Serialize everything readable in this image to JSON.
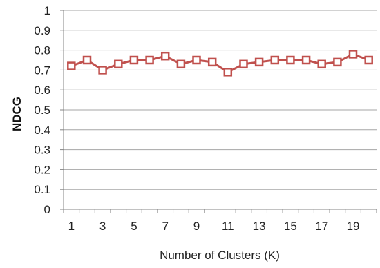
{
  "chart_data": {
    "type": "line",
    "title": "",
    "xlabel": "Number of Clusters (K)",
    "ylabel": "NDCG",
    "x": [
      1,
      2,
      3,
      4,
      5,
      6,
      7,
      8,
      9,
      10,
      11,
      12,
      13,
      14,
      15,
      16,
      17,
      18,
      19,
      20
    ],
    "series": [
      {
        "values": [
          0.72,
          0.75,
          0.7,
          0.73,
          0.75,
          0.75,
          0.77,
          0.73,
          0.75,
          0.74,
          0.69,
          0.73,
          0.74,
          0.75,
          0.75,
          0.75,
          0.73,
          0.74,
          0.78,
          0.75
        ],
        "color": "#c0504d",
        "marker": "square-hollow"
      }
    ],
    "xticks": [
      1,
      3,
      5,
      7,
      9,
      11,
      13,
      15,
      17,
      19
    ],
    "yticks": [
      "0",
      "0.1",
      "0.2",
      "0.3",
      "0.4",
      "0.5",
      "0.6",
      "0.7",
      "0.8",
      "0.9",
      "1"
    ],
    "ylim": [
      0,
      1
    ],
    "xlim": [
      0.5,
      20.5
    ],
    "grid": "horizontal",
    "legend": "none"
  }
}
